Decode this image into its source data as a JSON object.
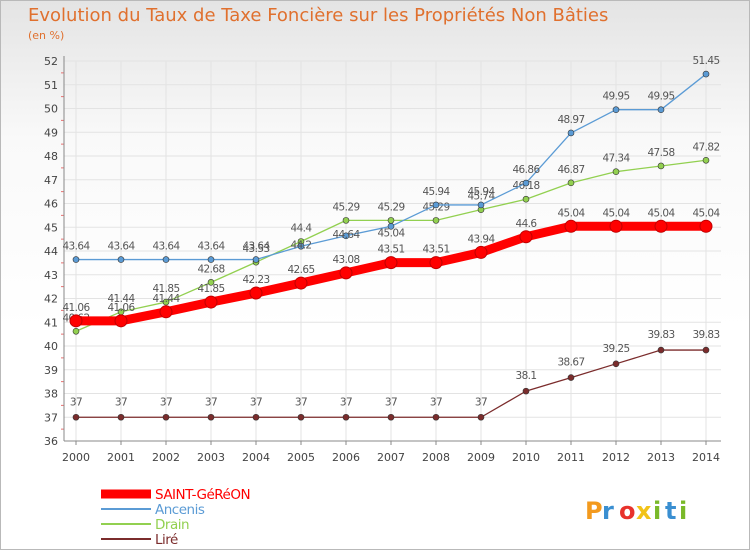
{
  "chart_data": {
    "type": "line",
    "title": "Evolution du Taux de Taxe Foncière sur les Propriétés Non Bâties",
    "unit": "(en %)",
    "x": [
      "2000",
      "2001",
      "2002",
      "2003",
      "2004",
      "2005",
      "2006",
      "2007",
      "2008",
      "2009",
      "2010",
      "2011",
      "2012",
      "2013",
      "2014"
    ],
    "ylim": [
      36,
      52
    ],
    "yticks": [
      "36",
      "37",
      "38",
      "39",
      "40",
      "41",
      "42",
      "43",
      "44",
      "45",
      "46",
      "47",
      "48",
      "49",
      "50",
      "51",
      "52"
    ],
    "grid": true,
    "legend_position": "bottom-left",
    "series": [
      {
        "name": "SAINT-GéRéON",
        "color": "#ff0000",
        "values": [
          41.06,
          41.06,
          41.44,
          41.85,
          42.23,
          42.65,
          43.08,
          43.51,
          43.51,
          43.94,
          44.6,
          45.04,
          45.04,
          45.04,
          45.04
        ],
        "labels": [
          "41.06",
          "41.06",
          "41.44",
          "41.85",
          "42.23",
          "42.65",
          "43.08",
          "43.51",
          "43.51",
          "43.94",
          "44.6",
          "45.04",
          "45.04",
          "45.04",
          "45.04"
        ]
      },
      {
        "name": "Ancenis",
        "color": "#5b9bd5",
        "values": [
          43.64,
          43.64,
          43.64,
          43.64,
          43.64,
          44.2,
          44.64,
          45.04,
          45.94,
          45.94,
          46.86,
          48.97,
          49.95,
          49.95,
          51.45
        ],
        "labels": [
          "43.64",
          "43.64",
          "43.64",
          "43.64",
          "43.64",
          "",
          "",
          "",
          "45.94",
          "45.94",
          "46.86",
          "48.97",
          "49.95",
          "49.95",
          "51.45"
        ]
      },
      {
        "name": "Drain",
        "color": "#92d050",
        "values": [
          40.62,
          41.44,
          41.85,
          42.68,
          43.53,
          44.4,
          45.29,
          45.29,
          45.29,
          45.74,
          46.18,
          46.87,
          47.34,
          47.58,
          47.82
        ],
        "labels": [
          "40.62",
          "41.44",
          "41.85",
          "42.68",
          "43.53",
          "44.4",
          "45.29",
          "45.29",
          "45.29",
          "45.74",
          "46.18",
          "46.87",
          "47.34",
          "47.58",
          "47.82"
        ]
      },
      {
        "name": "Liré",
        "color": "#7b2c2c",
        "values": [
          37,
          37,
          37,
          37,
          37,
          37,
          37,
          37,
          37,
          37,
          38.1,
          38.67,
          39.25,
          39.83,
          39.83
        ],
        "labels": [
          "37",
          "37",
          "37",
          "37",
          "37",
          "37",
          "37",
          "37",
          "37",
          "37",
          "38.1",
          "38.67",
          "39.25",
          "39.83",
          "39.83"
        ]
      }
    ],
    "extra_labels": [
      "44.2",
      "44.64",
      "45.04"
    ]
  },
  "brand": {
    "name": "Proxiti",
    "letters": [
      "P",
      "r",
      "o",
      "x",
      "i",
      "t",
      "i"
    ],
    "colors": [
      "#f39a1e",
      "#3a8fd1",
      "#e8322c",
      "#f2c318",
      "#7ab929",
      "#3a8fd1",
      "#7ab929"
    ]
  }
}
